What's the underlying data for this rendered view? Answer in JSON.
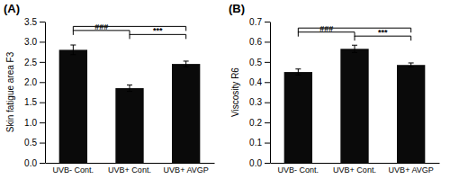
{
  "chart_data": [
    {
      "type": "bar",
      "title": "(A)",
      "ylabel": "Skin fatigue area F3",
      "categories": [
        "UVB- Cont.",
        "UVB+ Cont.",
        "UVB+ AVGP"
      ],
      "values": [
        2.8,
        1.85,
        2.45
      ],
      "errors": [
        0.12,
        0.08,
        0.07
      ],
      "color": "#0a0a0a",
      "ylim": [
        0,
        3.5
      ],
      "yticks": [
        {
          "value": 0,
          "label": "0.0"
        },
        0.5,
        {
          "value": 1.0,
          "label": "1.0"
        },
        1.5,
        {
          "value": 2.0,
          "label": "2.0"
        },
        2.5,
        {
          "value": 3.0,
          "label": "3.0"
        },
        3.5
      ],
      "annotations": [
        {
          "text": "###",
          "from": "UVB- Cont.",
          "to": "UVB+ Cont.",
          "y": 3.28
        },
        {
          "text": "***",
          "from": "UVB+ Cont.",
          "to": "UVB+ AVGP",
          "y": 3.18
        },
        {
          "from": "UVB- Cont.",
          "to": "UVB+ AVGP",
          "y": 3.38
        }
      ]
    },
    {
      "type": "bar",
      "title": "(B)",
      "ylabel": "Viscosity R6",
      "categories": [
        "UVB- Cont.",
        "UVB+ Cont.",
        "UVB+ AVGP"
      ],
      "values": [
        0.45,
        0.565,
        0.485
      ],
      "errors": [
        0.015,
        0.018,
        0.01
      ],
      "color": "#0a0a0a",
      "ylim": [
        0,
        0.7
      ],
      "yticks": [
        {
          "value": 0,
          "label": "0.0"
        },
        0.1,
        0.2,
        0.3,
        0.4,
        0.5,
        0.6,
        0.7
      ],
      "annotations": [
        {
          "text": "###",
          "from": "UVB- Cont.",
          "to": "UVB+ Cont.",
          "y": 0.648
        },
        {
          "text": "***",
          "from": "UVB+ Cont.",
          "to": "UVB+ AVGP",
          "y": 0.628
        },
        {
          "from": "UVB- Cont.",
          "to": "UVB+ AVGP",
          "y": 0.668
        }
      ]
    }
  ]
}
